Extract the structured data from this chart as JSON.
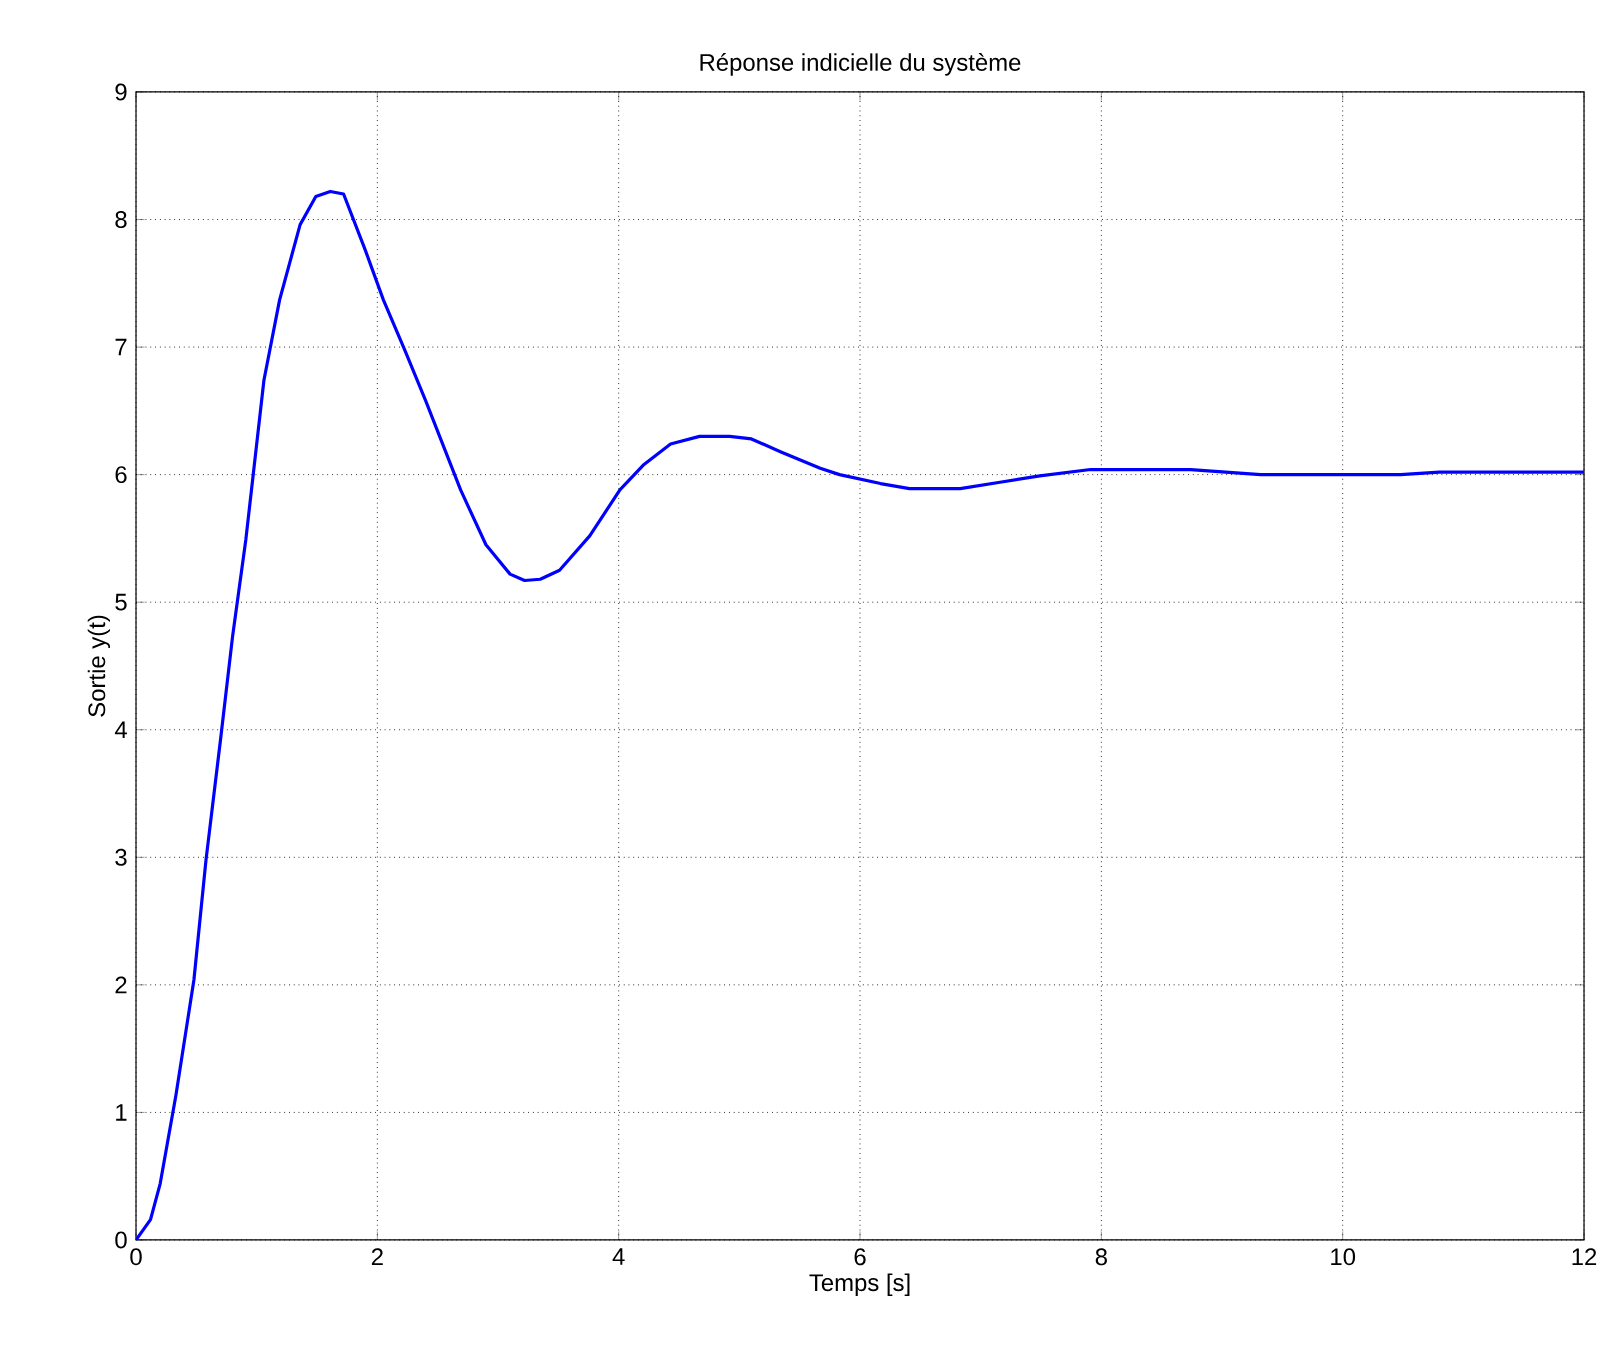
{
  "chart_data": {
    "type": "line",
    "title": "Réponse indicielle du système",
    "xlabel": "Temps [s]",
    "ylabel": "Sortie y(t)",
    "xlim": [
      0,
      12
    ],
    "ylim": [
      0,
      9
    ],
    "xticks": [
      0,
      2,
      4,
      6,
      8,
      10,
      12
    ],
    "yticks": [
      0,
      1,
      2,
      3,
      4,
      5,
      6,
      7,
      8,
      9
    ],
    "grid": true,
    "line_style": "solid",
    "marker": "none",
    "series": [
      {
        "color": "#0000ff",
        "x": [
          0,
          0.12,
          0.2,
          0.33,
          0.48,
          0.58,
          0.7,
          0.8,
          0.91,
          1.06,
          1.19,
          1.36,
          1.49,
          1.61,
          1.72,
          1.9,
          2.05,
          2.23,
          2.4,
          2.69,
          2.9,
          3.1,
          3.22,
          3.35,
          3.51,
          3.76,
          4.01,
          4.21,
          4.43,
          4.67,
          4.92,
          5.1,
          5.34,
          5.67,
          5.83,
          6.17,
          6.41,
          6.83,
          7.16,
          7.49,
          7.91,
          8.74,
          9.32,
          10.48,
          10.8,
          12
        ],
        "values": [
          0,
          0.16,
          0.44,
          1.13,
          2.04,
          2.98,
          3.92,
          4.73,
          5.49,
          6.74,
          7.37,
          7.96,
          8.18,
          8.22,
          8.2,
          7.76,
          7.37,
          6.97,
          6.58,
          5.88,
          5.45,
          5.22,
          5.17,
          5.18,
          5.25,
          5.52,
          5.88,
          6.08,
          6.24,
          6.3,
          6.3,
          6.28,
          6.18,
          6.05,
          6.0,
          5.93,
          5.89,
          5.89,
          5.94,
          5.99,
          6.04,
          6.04,
          6.0,
          6.0,
          6.02,
          6.02
        ]
      }
    ]
  }
}
